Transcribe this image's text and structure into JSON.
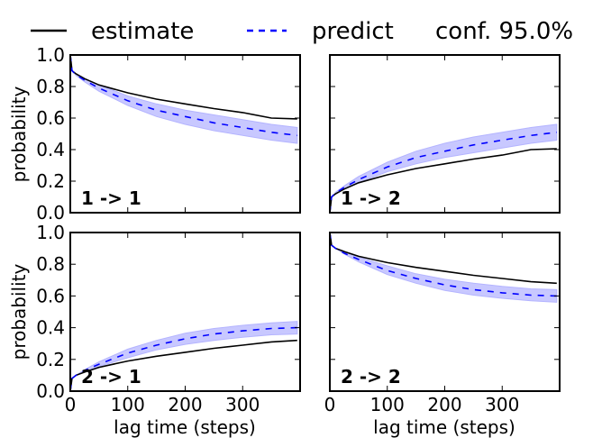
{
  "legend": {
    "items": [
      {
        "label": "estimate",
        "color": "#000000",
        "style": "solid"
      },
      {
        "label": "predict",
        "color": "#0000ff",
        "style": "dashed"
      },
      {
        "label": "conf. 95.0%",
        "color": "#ffffff",
        "style": "none"
      }
    ]
  },
  "colors": {
    "estimate": "#000000",
    "predict": "#0000ff",
    "band": "#c8c8ff",
    "band_edge": "#b4b4ff"
  },
  "chart_data": {
    "type": "line",
    "title": "",
    "layout": "2x2 grid, shared x and y axes",
    "legend_position": "top",
    "grid": false,
    "xlabel": "lag time (steps)",
    "ylabel": "probability",
    "xlim": [
      0,
      400
    ],
    "ylim": [
      0,
      1.0
    ],
    "xticks": [
      0,
      100,
      200,
      300
    ],
    "xtick_labels": [
      "0",
      "100",
      "200",
      "300"
    ],
    "yticks": [
      0.0,
      0.2,
      0.4,
      0.6,
      0.8,
      1.0
    ],
    "ytick_labels": [
      "0.0",
      "0.2",
      "0.4",
      "0.6",
      "0.8",
      "1.0"
    ],
    "x": [
      0,
      3,
      10,
      25,
      50,
      100,
      150,
      200,
      250,
      300,
      350,
      395
    ],
    "panels": [
      {
        "label": "1 -> 1",
        "estimate": [
          1.0,
          0.9,
          0.88,
          0.85,
          0.81,
          0.76,
          0.72,
          0.69,
          0.66,
          0.635,
          0.6,
          0.595
        ],
        "predict": [
          1.0,
          0.9,
          0.875,
          0.84,
          0.79,
          0.71,
          0.65,
          0.61,
          0.57,
          0.54,
          0.51,
          0.49
        ],
        "conf_lower": [
          1.0,
          0.9,
          0.87,
          0.83,
          0.77,
          0.68,
          0.61,
          0.56,
          0.52,
          0.49,
          0.46,
          0.44
        ],
        "conf_upper": [
          1.0,
          0.9,
          0.88,
          0.85,
          0.81,
          0.74,
          0.69,
          0.65,
          0.62,
          0.59,
          0.56,
          0.54
        ]
      },
      {
        "label": "1 -> 2",
        "estimate": [
          0.0,
          0.1,
          0.12,
          0.15,
          0.19,
          0.24,
          0.28,
          0.31,
          0.34,
          0.365,
          0.4,
          0.405
        ],
        "predict": [
          0.0,
          0.1,
          0.125,
          0.16,
          0.21,
          0.29,
          0.35,
          0.39,
          0.43,
          0.46,
          0.49,
          0.51
        ],
        "conf_lower": [
          0.0,
          0.1,
          0.12,
          0.15,
          0.19,
          0.26,
          0.31,
          0.35,
          0.38,
          0.41,
          0.44,
          0.46
        ],
        "conf_upper": [
          0.0,
          0.1,
          0.13,
          0.17,
          0.23,
          0.32,
          0.39,
          0.44,
          0.48,
          0.51,
          0.54,
          0.56
        ]
      },
      {
        "label": "2 -> 1",
        "estimate": [
          0.0,
          0.08,
          0.1,
          0.12,
          0.15,
          0.19,
          0.22,
          0.245,
          0.27,
          0.29,
          0.31,
          0.32
        ],
        "predict": [
          0.0,
          0.08,
          0.1,
          0.13,
          0.17,
          0.24,
          0.29,
          0.33,
          0.36,
          0.38,
          0.395,
          0.4
        ],
        "conf_lower": [
          0.0,
          0.08,
          0.1,
          0.12,
          0.155,
          0.21,
          0.26,
          0.295,
          0.32,
          0.34,
          0.355,
          0.36
        ],
        "conf_upper": [
          0.0,
          0.08,
          0.1,
          0.135,
          0.185,
          0.265,
          0.32,
          0.365,
          0.395,
          0.415,
          0.43,
          0.44
        ]
      },
      {
        "label": "2 -> 2",
        "estimate": [
          1.0,
          0.92,
          0.9,
          0.88,
          0.85,
          0.81,
          0.78,
          0.755,
          0.73,
          0.71,
          0.69,
          0.68
        ],
        "predict": [
          1.0,
          0.92,
          0.9,
          0.87,
          0.83,
          0.76,
          0.71,
          0.67,
          0.64,
          0.62,
          0.605,
          0.6
        ],
        "conf_lower": [
          1.0,
          0.92,
          0.9,
          0.865,
          0.815,
          0.735,
          0.68,
          0.635,
          0.605,
          0.585,
          0.57,
          0.56
        ],
        "conf_upper": [
          1.0,
          0.92,
          0.9,
          0.88,
          0.845,
          0.79,
          0.74,
          0.705,
          0.68,
          0.66,
          0.645,
          0.64
        ]
      }
    ]
  }
}
